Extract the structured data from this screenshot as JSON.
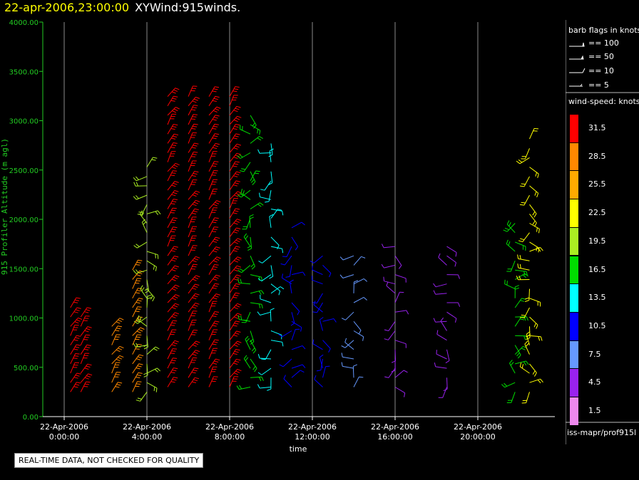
{
  "title": {
    "date_text": "22-apr-2006,23:00:00",
    "chart_name": "XYWind:915winds."
  },
  "legend": {
    "flags_title": "barb flags in knots",
    "flags": [
      "== 100",
      "== 50",
      "== 10",
      "== 5"
    ],
    "speed_title": "wind-speed: knots",
    "speed_bins": [
      {
        "label": "31.5",
        "color": "#ff0000"
      },
      {
        "label": "28.5",
        "color": "#ff8800"
      },
      {
        "label": "25.5",
        "color": "#ffaa00"
      },
      {
        "label": "22.5",
        "color": "#ffff00"
      },
      {
        "label": "19.5",
        "color": "#aaee22"
      },
      {
        "label": "16.5",
        "color": "#00dd00"
      },
      {
        "label": "13.5",
        "color": "#00ffff"
      },
      {
        "label": "10.5",
        "color": "#0000ff"
      },
      {
        "label": "7.5",
        "color": "#6699ff"
      },
      {
        "label": "4.5",
        "color": "#9922ee"
      },
      {
        "label": "1.5",
        "color": "#ee88ee"
      }
    ],
    "source_path": "iss-mapr/prof915l"
  },
  "disclaimer": "REAL-TIME DATA, NOT CHECKED FOR QUALITY",
  "chart_data": {
    "type": "scatter",
    "plot_style": "wind barbs",
    "title": "22-apr-2006,23:00:00  XYWind:915winds.",
    "xlabel": "time",
    "ylabel": "915 Profiler Altitude (m agl)",
    "ylim": [
      0,
      4000
    ],
    "xlim_hours": [
      -0.2,
      23.3
    ],
    "y_ticks": [
      "0.00",
      "500.00",
      "1000.00",
      "1500.00",
      "2000.00",
      "2500.00",
      "3000.00",
      "3500.00",
      "4000.00"
    ],
    "x_ticks": [
      {
        "hour": 0,
        "date": "22-Apr-2006",
        "time": "0:00:00"
      },
      {
        "hour": 4,
        "date": "22-Apr-2006",
        "time": "4:00:00"
      },
      {
        "hour": 8,
        "date": "22-Apr-2006",
        "time": "8:00:00"
      },
      {
        "hour": 12,
        "date": "22-Apr-2006",
        "time": "12:00:00"
      },
      {
        "hour": 16,
        "date": "22-Apr-2006",
        "time": "16:00:00"
      },
      {
        "hour": 20,
        "date": "22-Apr-2006",
        "time": "20:00:00"
      }
    ],
    "grid": "vertical",
    "series": [
      {
        "hour": 0.3,
        "altitude_range": [
          250,
          1150
        ],
        "speed_bin": "31.5"
      },
      {
        "hour": 0.8,
        "altitude_range": [
          250,
          1100
        ],
        "speed_bin": "31.5"
      },
      {
        "hour": 2.3,
        "altitude_range": [
          250,
          1000
        ],
        "speed_bin": "28.5"
      },
      {
        "hour": 3.3,
        "altitude_range": [
          250,
          1550
        ],
        "speed_bin": "28.5"
      },
      {
        "hour": 4.0,
        "altitude_range": [
          250,
          2600
        ],
        "speed_bin": "19.5"
      },
      {
        "hour": 5.0,
        "altitude_range": [
          300,
          3300
        ],
        "speed_bin": "31.5"
      },
      {
        "hour": 6.0,
        "altitude_range": [
          300,
          3300
        ],
        "speed_bin": "31.5"
      },
      {
        "hour": 7.0,
        "altitude_range": [
          300,
          3300
        ],
        "speed_bin": "31.5"
      },
      {
        "hour": 8.0,
        "altitude_range": [
          300,
          3300
        ],
        "speed_bin": "31.5"
      },
      {
        "hour": 9.0,
        "altitude_range": [
          300,
          3100
        ],
        "speed_bin": "16.5"
      },
      {
        "hour": 10.0,
        "altitude_range": [
          300,
          2800
        ],
        "speed_bin": "13.5"
      },
      {
        "hour": 11.0,
        "altitude_range": [
          300,
          2000
        ],
        "speed_bin": "10.5"
      },
      {
        "hour": 12.5,
        "altitude_range": [
          300,
          1700
        ],
        "speed_bin": "10.5"
      },
      {
        "hour": 14.0,
        "altitude_range": [
          300,
          1700
        ],
        "speed_bin": "7.5"
      },
      {
        "hour": 16.0,
        "altitude_range": [
          300,
          1800
        ],
        "speed_bin": "4.5"
      },
      {
        "hour": 18.5,
        "altitude_range": [
          300,
          1800
        ],
        "speed_bin": "4.5"
      },
      {
        "hour": 21.8,
        "altitude_range": [
          250,
          2000
        ],
        "speed_bin": "16.5"
      },
      {
        "hour": 22.5,
        "altitude_range": [
          250,
          2900
        ],
        "speed_bin": "22.5"
      }
    ]
  }
}
